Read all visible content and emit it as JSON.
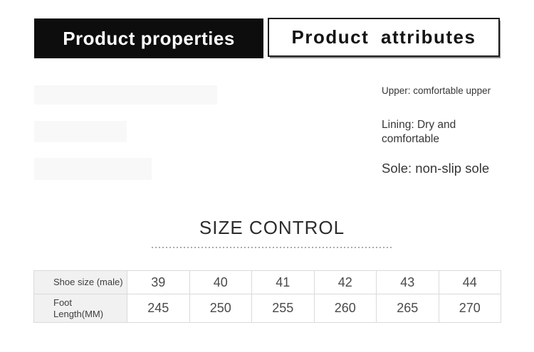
{
  "header": {
    "properties_tab": "Product properties",
    "attributes_tab": "Product attributes"
  },
  "attributes_panel": {
    "upper": "Upper: comfortable upper",
    "lining": "Lining: Dry and comfortable",
    "sole": "Sole: non-slip sole"
  },
  "size_section": {
    "title": "SIZE CONTROL",
    "table": {
      "rows": [
        {
          "label_lines": [
            "Shoe size (male)"
          ],
          "values": [
            "39",
            "40",
            "41",
            "42",
            "43",
            "44"
          ]
        },
        {
          "label_lines": [
            "Foot",
            "Length(MM)"
          ],
          "values": [
            "245",
            "250",
            "255",
            "260",
            "265",
            "270"
          ]
        }
      ]
    }
  },
  "colors": {
    "tab_active_bg": "#0d0d0d",
    "tab_active_text": "#ffffff",
    "tab_inactive_border": "#1d1d1d",
    "tab_shadow": "#8d8d8d",
    "table_label_bg": "#f1f1f1",
    "table_border": "#dadada",
    "body_text": "#363636"
  }
}
